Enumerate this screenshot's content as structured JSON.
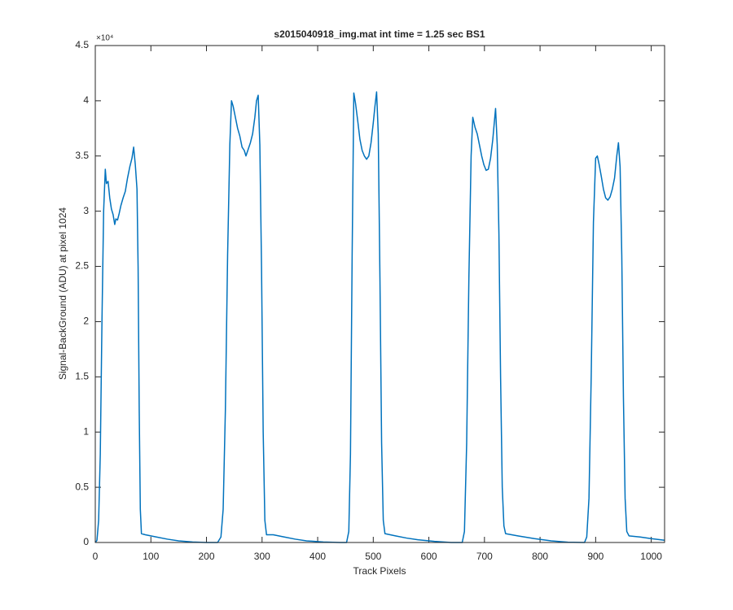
{
  "chart_data": {
    "type": "line",
    "title": "s2015040918_img.mat int time = 1.25 sec   BS1",
    "x_label": "Track Pixels",
    "y_label": "Signal-BackGround (ADU) at pixel 1024",
    "y_multiplier": "×10⁴",
    "color": "#0072BD",
    "xlim": [
      0,
      1024
    ],
    "xticks": [
      0,
      100,
      200,
      300,
      400,
      500,
      600,
      700,
      800,
      900,
      1000
    ],
    "ylim": [
      0,
      4.5
    ],
    "yticks": [
      0,
      0.5,
      1,
      1.5,
      2,
      2.5,
      3,
      3.5,
      4,
      4.5
    ],
    "x": [
      0,
      3,
      6,
      9,
      12,
      15,
      18,
      20,
      23,
      26,
      29,
      32,
      35,
      37,
      40,
      43,
      46,
      50,
      54,
      58,
      62,
      66,
      69,
      72,
      75,
      77,
      79,
      81,
      83,
      90,
      110,
      130,
      150,
      175,
      200,
      220,
      226,
      230,
      234,
      238,
      242,
      245,
      248,
      252,
      256,
      260,
      264,
      268,
      271,
      275,
      279,
      283,
      287,
      290,
      293,
      296,
      299,
      302,
      305,
      308,
      320,
      340,
      360,
      380,
      410,
      440,
      452,
      456,
      459,
      462,
      465,
      468,
      472,
      476,
      480,
      484,
      488,
      492,
      496,
      500,
      503,
      506,
      509,
      512,
      515,
      518,
      521,
      540,
      560,
      580,
      610,
      640,
      660,
      664,
      668,
      672,
      676,
      679,
      683,
      687,
      691,
      695,
      699,
      703,
      707,
      711,
      715,
      718,
      720,
      723,
      726,
      729,
      732,
      735,
      738,
      760,
      790,
      820,
      850,
      880,
      884,
      888,
      892,
      896,
      900,
      903,
      906,
      910,
      914,
      918,
      922,
      926,
      930,
      934,
      938,
      941,
      944,
      947,
      950,
      953,
      956,
      960,
      980,
      1000,
      1024
    ],
    "values": [
      0,
      0.02,
      0.2,
      0.8,
      2.0,
      3.0,
      3.38,
      3.25,
      3.27,
      3.12,
      3.02,
      2.97,
      2.88,
      2.93,
      2.92,
      2.98,
      3.05,
      3.12,
      3.18,
      3.3,
      3.4,
      3.48,
      3.58,
      3.42,
      3.2,
      2.5,
      1.2,
      0.3,
      0.08,
      0.07,
      0.05,
      0.03,
      0.015,
      0.005,
      0,
      0,
      0.05,
      0.3,
      1.2,
      2.6,
      3.6,
      4.0,
      3.95,
      3.85,
      3.75,
      3.68,
      3.58,
      3.55,
      3.5,
      3.56,
      3.62,
      3.7,
      3.85,
      4.0,
      4.05,
      3.6,
      2.5,
      1.0,
      0.2,
      0.07,
      0.07,
      0.05,
      0.03,
      0.015,
      0.005,
      0,
      0,
      0.1,
      0.8,
      2.6,
      4.07,
      3.98,
      3.82,
      3.65,
      3.55,
      3.5,
      3.47,
      3.5,
      3.62,
      3.8,
      3.95,
      4.08,
      3.7,
      2.4,
      0.9,
      0.2,
      0.08,
      0.06,
      0.04,
      0.025,
      0.01,
      0,
      0,
      0.1,
      0.9,
      2.4,
      3.5,
      3.85,
      3.76,
      3.7,
      3.6,
      3.5,
      3.42,
      3.37,
      3.38,
      3.48,
      3.65,
      3.82,
      3.93,
      3.6,
      2.8,
      1.5,
      0.5,
      0.15,
      0.08,
      0.06,
      0.035,
      0.015,
      0.003,
      0,
      0.05,
      0.4,
      1.5,
      2.9,
      3.48,
      3.5,
      3.43,
      3.32,
      3.2,
      3.12,
      3.1,
      3.13,
      3.2,
      3.3,
      3.5,
      3.62,
      3.4,
      2.6,
      1.3,
      0.4,
      0.1,
      0.06,
      0.05,
      0.035,
      0.02
    ]
  }
}
